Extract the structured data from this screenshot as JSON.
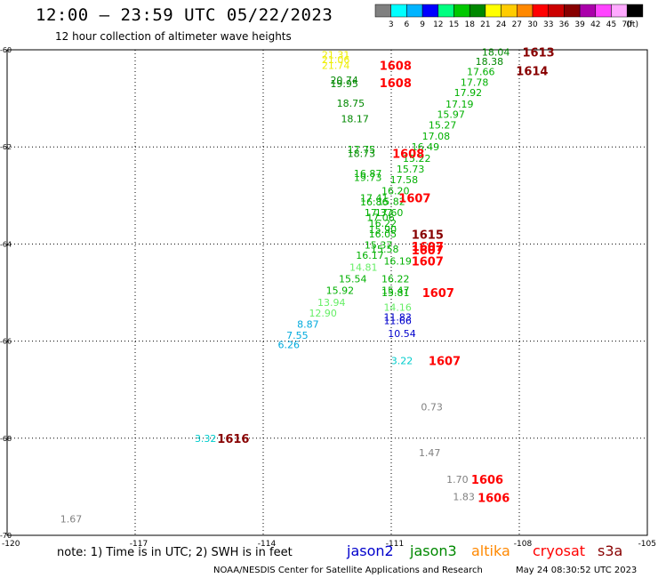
{
  "header": {
    "title": "12:00 – 23:59 UTC 05/22/2023",
    "subtitle": "12 hour collection of altimeter wave heights"
  },
  "colorbar": {
    "labels": [
      "3",
      "6",
      "9",
      "12",
      "15",
      "18",
      "21",
      "24",
      "27",
      "30",
      "33",
      "36",
      "39",
      "42",
      "45",
      "70",
      "(ft)"
    ],
    "colors": [
      "#808080",
      "#00ffff",
      "#00b4ff",
      "#0000ff",
      "#00ff80",
      "#00c800",
      "#008800",
      "#ffff00",
      "#ffcc00",
      "#ff8800",
      "#ff0000",
      "#cc0000",
      "#880000",
      "#aa00aa",
      "#ff44ff",
      "#ffaaff",
      "#000000"
    ]
  },
  "footer": {
    "note": "note: 1) Time is in UTC; 2) SWH is in feet",
    "missions": [
      {
        "label": "jason2",
        "color": "#0000cc"
      },
      {
        "label": "jason3",
        "color": "#008800"
      },
      {
        "label": "altika",
        "color": "#ff8800"
      },
      {
        "label": "cryosat",
        "color": "#ff0000"
      },
      {
        "label": "s3a",
        "color": "#880000"
      }
    ],
    "credit": "NOAA/NESDIS Center for Satellite Applications and Research",
    "timestamp": "May 24 08:30:52 UTC 2023"
  },
  "chart_data": {
    "type": "scatter",
    "xlim": [
      -120,
      -105
    ],
    "ylim": [
      -70,
      -60
    ],
    "x_ticks": [
      {
        "label": "-120",
        "value": -120
      },
      {
        "label": "-117",
        "value": -117
      },
      {
        "label": "-114",
        "value": -114
      },
      {
        "label": "-111",
        "value": -111
      },
      {
        "label": "-108",
        "value": -108
      },
      {
        "label": "-105",
        "value": -105
      }
    ],
    "y_ticks": [
      {
        "label": "-60",
        "value": -60
      },
      {
        "label": "-62",
        "value": -62
      },
      {
        "label": "-64",
        "value": -64
      },
      {
        "label": "-66",
        "value": -66
      },
      {
        "label": "-68",
        "value": -68
      },
      {
        "label": "-70",
        "value": -70
      }
    ],
    "grid": true,
    "wave_heights": [
      {
        "lon": -112.3,
        "lat": -60.1,
        "text": "21.31",
        "color": "#eeee00"
      },
      {
        "lon": -112.3,
        "lat": -60.2,
        "text": "21.06",
        "color": "#eeee00"
      },
      {
        "lon": -112.3,
        "lat": -60.32,
        "text": "21.74",
        "color": "#eeee00"
      },
      {
        "lon": -112.1,
        "lat": -60.62,
        "text": "20.74",
        "color": "#008800"
      },
      {
        "lon": -112.1,
        "lat": -60.7,
        "text": "19.95",
        "color": "#008800"
      },
      {
        "lon": -111.95,
        "lat": -61.1,
        "text": "18.75",
        "color": "#008800"
      },
      {
        "lon": -111.85,
        "lat": -61.42,
        "text": "18.17",
        "color": "#008800"
      },
      {
        "lon": -111.7,
        "lat": -62.05,
        "text": "17.75",
        "color": "#00b000"
      },
      {
        "lon": -111.7,
        "lat": -62.13,
        "text": "18.73",
        "color": "#008800"
      },
      {
        "lon": -111.55,
        "lat": -62.55,
        "text": "16.87",
        "color": "#00b000"
      },
      {
        "lon": -111.55,
        "lat": -62.63,
        "text": "19.73",
        "color": "#00b000"
      },
      {
        "lon": -111.4,
        "lat": -63.05,
        "text": "17.41",
        "color": "#00b000"
      },
      {
        "lon": -111.4,
        "lat": -63.13,
        "text": "16.86",
        "color": "#00b000"
      },
      {
        "lon": -111.3,
        "lat": -63.35,
        "text": "17.37",
        "color": "#00b000"
      },
      {
        "lon": -111.25,
        "lat": -63.45,
        "text": "17.06",
        "color": "#00b000"
      },
      {
        "lon": -111.2,
        "lat": -63.7,
        "text": "15.90",
        "color": "#00b000"
      },
      {
        "lon": -111.2,
        "lat": -63.79,
        "text": "16.05",
        "color": "#00b000"
      },
      {
        "lon": -111.3,
        "lat": -64.02,
        "text": "15.37",
        "color": "#00b000"
      },
      {
        "lon": -111.15,
        "lat": -64.1,
        "text": "15.58",
        "color": "#00b000"
      },
      {
        "lon": -111.5,
        "lat": -64.23,
        "text": "16.17",
        "color": "#00b000"
      },
      {
        "lon": -111.65,
        "lat": -64.48,
        "text": "14.81",
        "color": "#66ee66"
      },
      {
        "lon": -110.85,
        "lat": -64.35,
        "text": "16.19",
        "color": "#00b000"
      },
      {
        "lon": -111.9,
        "lat": -64.72,
        "text": "15.54",
        "color": "#00b000"
      },
      {
        "lon": -112.2,
        "lat": -64.95,
        "text": "15.92",
        "color": "#00b000"
      },
      {
        "lon": -112.4,
        "lat": -65.2,
        "text": "13.94",
        "color": "#66ee66"
      },
      {
        "lon": -112.6,
        "lat": -65.42,
        "text": "12.90",
        "color": "#66ee66"
      },
      {
        "lon": -112.95,
        "lat": -65.65,
        "text": "8.87",
        "color": "#00aadd"
      },
      {
        "lon": -113.2,
        "lat": -65.88,
        "text": "7.55",
        "color": "#00aadd"
      },
      {
        "lon": -113.4,
        "lat": -66.07,
        "text": "6.26",
        "color": "#00aadd"
      },
      {
        "lon": -110.9,
        "lat": -64.72,
        "text": "16.22",
        "color": "#00b000"
      },
      {
        "lon": -110.9,
        "lat": -64.95,
        "text": "15.47",
        "color": "#00b000"
      },
      {
        "lon": -110.9,
        "lat": -65.0,
        "text": "15.81",
        "color": "#00b000"
      },
      {
        "lon": -110.85,
        "lat": -65.3,
        "text": "14.16",
        "color": "#66ee66"
      },
      {
        "lon": -110.85,
        "lat": -65.5,
        "text": "11.83",
        "color": "#0000cc"
      },
      {
        "lon": -110.85,
        "lat": -65.58,
        "text": "11.66",
        "color": "#0000cc"
      },
      {
        "lon": -110.75,
        "lat": -65.84,
        "text": "10.54",
        "color": "#0000cc"
      },
      {
        "lon": -108.55,
        "lat": -60.05,
        "text": "18.04",
        "color": "#008800"
      },
      {
        "lon": -108.7,
        "lat": -60.24,
        "text": "18.38",
        "color": "#008800"
      },
      {
        "lon": -108.9,
        "lat": -60.45,
        "text": "17.66",
        "color": "#00b000"
      },
      {
        "lon": -109.05,
        "lat": -60.67,
        "text": "17.78",
        "color": "#00b000"
      },
      {
        "lon": -109.2,
        "lat": -60.88,
        "text": "17.92",
        "color": "#00b000"
      },
      {
        "lon": -109.4,
        "lat": -61.12,
        "text": "17.19",
        "color": "#00b000"
      },
      {
        "lon": -109.6,
        "lat": -61.33,
        "text": "15.97",
        "color": "#00b000"
      },
      {
        "lon": -109.8,
        "lat": -61.55,
        "text": "15.27",
        "color": "#00b000"
      },
      {
        "lon": -109.95,
        "lat": -61.78,
        "text": "17.08",
        "color": "#00b000"
      },
      {
        "lon": -110.2,
        "lat": -62.0,
        "text": "16.49",
        "color": "#00b000"
      },
      {
        "lon": -110.4,
        "lat": -62.23,
        "text": "15.22",
        "color": "#00b000"
      },
      {
        "lon": -110.55,
        "lat": -62.45,
        "text": "15.73",
        "color": "#00b000"
      },
      {
        "lon": -110.7,
        "lat": -62.67,
        "text": "17.58",
        "color": "#00b000"
      },
      {
        "lon": -110.9,
        "lat": -62.9,
        "text": "16.20",
        "color": "#00b000"
      },
      {
        "lon": -111.0,
        "lat": -63.12,
        "text": "15.82",
        "color": "#00b000"
      },
      {
        "lon": -111.05,
        "lat": -63.35,
        "text": "17.60",
        "color": "#00b000"
      },
      {
        "lon": -111.2,
        "lat": -63.57,
        "text": "16.22",
        "color": "#00b000"
      },
      {
        "lon": -110.75,
        "lat": -66.4,
        "text": "3.22",
        "color": "#00cccc"
      },
      {
        "lon": -110.05,
        "lat": -67.35,
        "text": "0.73",
        "color": "#808080"
      },
      {
        "lon": -110.1,
        "lat": -68.3,
        "text": "1.47",
        "color": "#808080"
      },
      {
        "lon": -109.45,
        "lat": -68.85,
        "text": "1.70",
        "color": "#808080"
      },
      {
        "lon": -109.3,
        "lat": -69.2,
        "text": "1.83",
        "color": "#808080"
      },
      {
        "lon": -118.5,
        "lat": -69.66,
        "text": "1.67",
        "color": "#808080"
      },
      {
        "lon": -115.35,
        "lat": -68.0,
        "text": "3.32",
        "color": "#00cccc"
      }
    ],
    "time_labels": [
      {
        "lon": -110.9,
        "lat": -60.32,
        "text": "1608",
        "color": "#ff0000"
      },
      {
        "lon": -110.9,
        "lat": -60.68,
        "text": "1608",
        "color": "#ff0000"
      },
      {
        "lon": -110.6,
        "lat": -62.13,
        "text": "1608",
        "color": "#ff0000"
      },
      {
        "lon": -110.45,
        "lat": -63.05,
        "text": "1607",
        "color": "#ff0000"
      },
      {
        "lon": -110.15,
        "lat": -63.8,
        "text": "1615",
        "color": "#880000"
      },
      {
        "lon": -110.15,
        "lat": -64.05,
        "text": "1607",
        "color": "#ff0000"
      },
      {
        "lon": -110.15,
        "lat": -64.12,
        "text": "1607",
        "color": "#ff0000"
      },
      {
        "lon": -110.15,
        "lat": -64.35,
        "text": "1607",
        "color": "#ff0000"
      },
      {
        "lon": -109.9,
        "lat": -65.0,
        "text": "1607",
        "color": "#ff0000"
      },
      {
        "lon": -109.75,
        "lat": -66.4,
        "text": "1607",
        "color": "#ff0000"
      },
      {
        "lon": -107.55,
        "lat": -60.05,
        "text": "1613",
        "color": "#880000"
      },
      {
        "lon": -107.7,
        "lat": -60.43,
        "text": "1614",
        "color": "#880000"
      },
      {
        "lon": -108.75,
        "lat": -68.85,
        "text": "1606",
        "color": "#ff0000"
      },
      {
        "lon": -108.6,
        "lat": -69.22,
        "text": "1606",
        "color": "#ff0000"
      },
      {
        "lon": -114.7,
        "lat": -68.0,
        "text": "1616",
        "color": "#880000"
      }
    ]
  }
}
